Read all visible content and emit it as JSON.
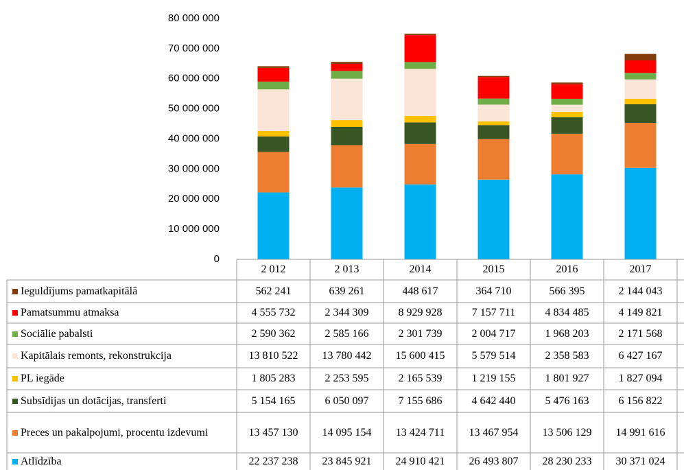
{
  "chart_data": {
    "type": "stacked_bar",
    "categories": [
      "2 012",
      "2 013",
      "2014",
      "2015",
      "2016",
      "2017"
    ],
    "series": [
      {
        "name": "Ieguldījums pamatkapitālā",
        "color": "#843c0c",
        "values": [
          562241,
          639261,
          448617,
          364710,
          566395,
          2144043
        ],
        "value_labels": [
          "562 241",
          "639 261",
          "448 617",
          "364 710",
          "566 395",
          "2 144 043"
        ]
      },
      {
        "name": "Pamatsummu atmaksa",
        "color": "#ff0000",
        "values": [
          4555732,
          2344309,
          8929928,
          7157711,
          4834485,
          4149821
        ],
        "value_labels": [
          "4 555 732",
          "2 344 309",
          "8 929 928",
          "7 157 711",
          "4 834 485",
          "4 149 821"
        ]
      },
      {
        "name": "Sociālie pabalsti",
        "color": "#70ad47",
        "values": [
          2590362,
          2585166,
          2301739,
          2004717,
          1968203,
          2171568
        ],
        "value_labels": [
          "2 590 362",
          "2 585 166",
          "2 301 739",
          "2 004 717",
          "1 968 203",
          "2 171 568"
        ]
      },
      {
        "name": "Kapitālais remonts, rekonstrukcija",
        "color": "#fbe5d6",
        "values": [
          13810522,
          13780442,
          15600415,
          5579514,
          2358583,
          6427167
        ],
        "value_labels": [
          "13 810 522",
          "13 780 442",
          "15 600 415",
          "5 579 514",
          "2 358 583",
          "6 427 167"
        ]
      },
      {
        "name": "PL iegāde",
        "color": "#ffc000",
        "values": [
          1805283,
          2253595,
          2165539,
          1219155,
          1801927,
          1827094
        ],
        "value_labels": [
          "1 805 283",
          "2 253 595",
          "2 165 539",
          "1 219 155",
          "1 801 927",
          "1 827 094"
        ]
      },
      {
        "name": "Subsīdijas un dotācijas, transferti",
        "color": "#375623",
        "values": [
          5154165,
          6050097,
          7155686,
          4642440,
          5476163,
          6156822
        ],
        "value_labels": [
          "5 154 165",
          "6 050 097",
          "7 155 686",
          "4 642 440",
          "5 476 163",
          "6 156 822"
        ]
      },
      {
        "name": "Preces un pakalpojumi, procentu izdevumi",
        "color": "#ed7d31",
        "values": [
          13457130,
          14095154,
          13424711,
          13467954,
          13506129,
          14991616
        ],
        "value_labels": [
          "13 457 130",
          "14 095 154",
          "13 424 711",
          "13 467 954",
          "13 506 129",
          "14 991 616"
        ]
      },
      {
        "name": "Atlīdzība",
        "color": "#00b0f0",
        "values": [
          22237238,
          23845921,
          24910421,
          26493807,
          28230233,
          30371024
        ],
        "value_labels": [
          "22 237 238",
          "23 845 921",
          "24 910 421",
          "26 493 807",
          "28 230 233",
          "30 371 024"
        ]
      }
    ],
    "ylim": [
      0,
      80000000
    ],
    "yticks": [
      0,
      {
        "value": 10000000,
        "label": "10 000 000"
      },
      {
        "value": 20000000,
        "label": "20 000 000"
      },
      {
        "value": 30000000,
        "label": "30 000 000"
      },
      {
        "value": 40000000,
        "label": "40 000 000"
      },
      {
        "value": 50000000,
        "label": "50 000 000"
      },
      {
        "value": 60000000,
        "label": "60 000 000"
      },
      {
        "value": 70000000,
        "label": "70 000 000"
      },
      {
        "value": 80000000,
        "label": "80 000 000"
      }
    ]
  }
}
